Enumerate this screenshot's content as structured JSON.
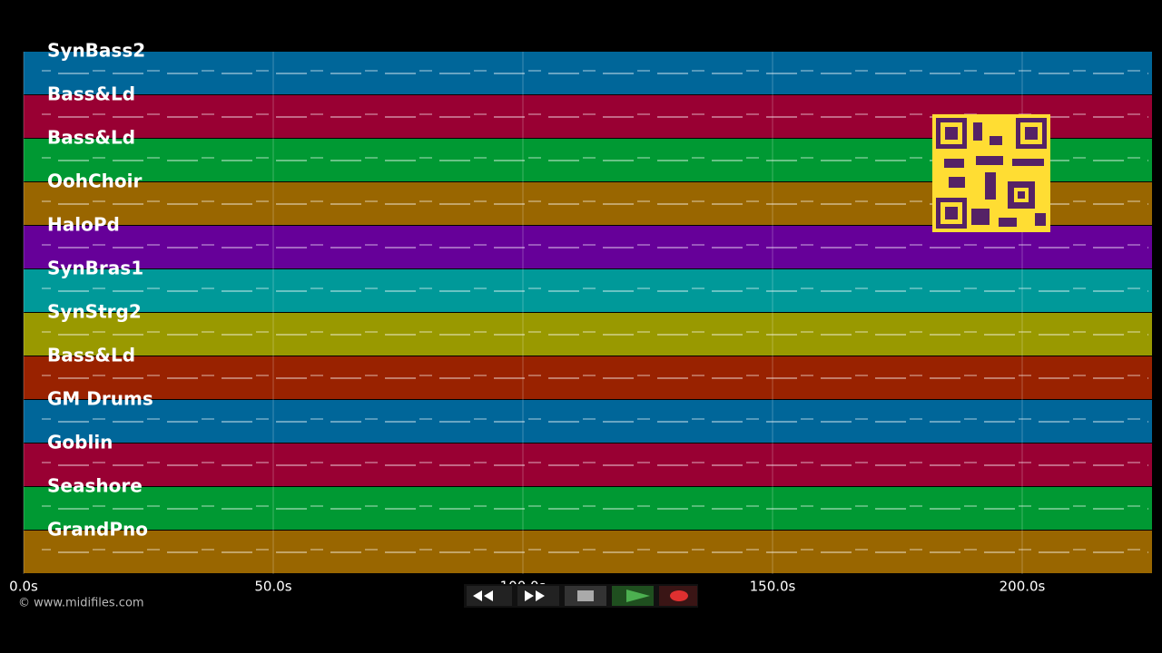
{
  "tracks": [
    {
      "name": "SynBass2",
      "color": "#006699"
    },
    {
      "name": "Bass&Ld",
      "color": "#990033"
    },
    {
      "name": "Bass&Ld",
      "color": "#009933"
    },
    {
      "name": "OohChoir",
      "color": "#996600"
    },
    {
      "name": "HaloPd",
      "color": "#660099"
    },
    {
      "name": "SynBras1",
      "color": "#009999"
    },
    {
      "name": "SynStrg2",
      "color": "#999900"
    },
    {
      "name": "Bass&Ld",
      "color": "#992200"
    },
    {
      "name": "GM Drums",
      "color": "#006699"
    },
    {
      "name": "Goblin",
      "color": "#990033"
    },
    {
      "name": "Seashore",
      "color": "#009933"
    },
    {
      "name": "GrandPno",
      "color": "#996600"
    }
  ],
  "timeline": {
    "xlim": [
      0,
      226
    ],
    "ticks": [
      {
        "value": 0,
        "label": "0.0s"
      },
      {
        "value": 50,
        "label": "50.0s"
      },
      {
        "value": 100,
        "label": "100.0s"
      },
      {
        "value": 150,
        "label": "150.0s"
      },
      {
        "value": 200,
        "label": "200.0s"
      }
    ]
  },
  "credit": "© www.midifiles.com"
}
